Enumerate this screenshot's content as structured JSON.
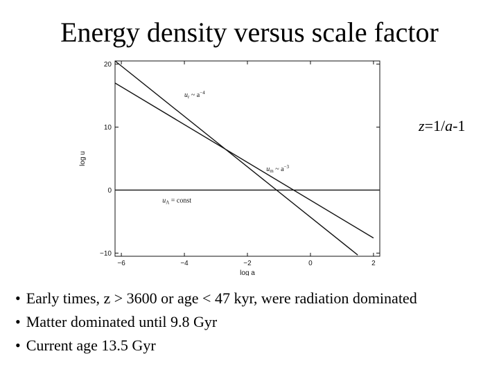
{
  "title": "Energy density versus scale factor",
  "formula": {
    "var": "z",
    "eq": "=1/",
    "var2": "a",
    "rest": "-1"
  },
  "bullets": [
    "Early times, z > 3600 or age < 47 kyr, were radiation dominated",
    "Matter dominated until 9.8 Gyr",
    "Current age 13.5 Gyr"
  ],
  "chart_data": {
    "type": "line",
    "title": "",
    "xlabel": "log a",
    "ylabel": "log u",
    "xlim": [
      -6.2,
      2.2
    ],
    "ylim": [
      -10.5,
      20.5
    ],
    "xticks": [
      -6,
      -4,
      -2,
      0,
      2
    ],
    "xtick_labels": [
      "−6",
      "−4",
      "−2",
      "0",
      "2"
    ],
    "yticks": [
      -10,
      0,
      10,
      20
    ],
    "ytick_labels": [
      "−10",
      "0",
      "10",
      "20"
    ],
    "grid": false,
    "series": [
      {
        "name": "u_r ~ a^-4",
        "label_main": "u",
        "label_sub": "r",
        "label_rest": " ~ a",
        "label_sup": "−4",
        "x": [
          -6.2,
          1.5
        ],
        "y": [
          20.5,
          -10.3
        ]
      },
      {
        "name": "u_m ~ a^-3",
        "label_main": "u",
        "label_sub": "m",
        "label_rest": " ~ a",
        "label_sup": "−3",
        "x": [
          -6.2,
          2.0
        ],
        "y": [
          17.0,
          -7.6
        ]
      },
      {
        "name": "u_Λ = const",
        "label_main": "u",
        "label_sub": "Λ",
        "label_rest": " = const",
        "label_sup": "",
        "x": [
          -6.2,
          2.2
        ],
        "y": [
          0,
          0
        ]
      }
    ]
  }
}
